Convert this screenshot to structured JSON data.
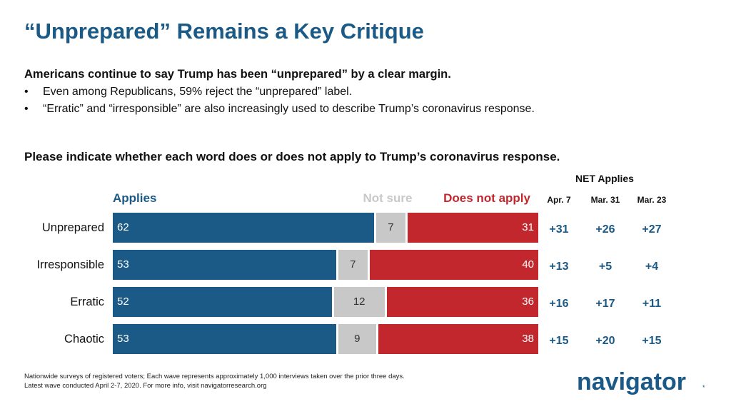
{
  "title": "“Unprepared” Remains a Key Critique",
  "headline": "Americans continue to say Trump has been “unprepared” by a clear margin.",
  "bullets": [
    "Even among Republicans, 59% reject the “unprepared” label.",
    "“Erratic” and “irresponsible” are also increasingly used to describe Trump’s coronavirus response."
  ],
  "chart_data": {
    "type": "bar",
    "orientation": "horizontal",
    "stacked": true,
    "title": "Please indicate whether each word does or does not apply to Trump’s coronavirus response.",
    "categories": [
      "Unprepared",
      "Irresponsible",
      "Erratic",
      "Chaotic"
    ],
    "series": [
      {
        "name": "Applies",
        "values": [
          62,
          53,
          52,
          53
        ],
        "color": "#1b5a86"
      },
      {
        "name": "Not sure",
        "values": [
          7,
          7,
          12,
          9
        ],
        "color": "#c8c8c8"
      },
      {
        "name": "Does not apply",
        "values": [
          31,
          40,
          36,
          38
        ],
        "color": "#c1272d"
      }
    ],
    "legend_placement": "top",
    "xlim": [
      0,
      100
    ],
    "grid": false,
    "net_table": {
      "title": "NET Applies",
      "columns": [
        "Apr. 7",
        "Mar. 31",
        "Mar. 23"
      ],
      "rows": [
        [
          "+31",
          "+26",
          "+27"
        ],
        [
          "+13",
          "+5",
          "+4"
        ],
        [
          "+16",
          "+17",
          "+11"
        ],
        [
          "+15",
          "+20",
          "+15"
        ]
      ]
    }
  },
  "footnote": [
    "Nationwide surveys of registered voters; Each wave represents approximately 1,000 interviews taken over the prior three days.",
    "Latest wave conducted April 2-7, 2020. For more info, visit navigatorresearch.org"
  ],
  "logo": {
    "text": "navigator",
    "mark": "*"
  }
}
